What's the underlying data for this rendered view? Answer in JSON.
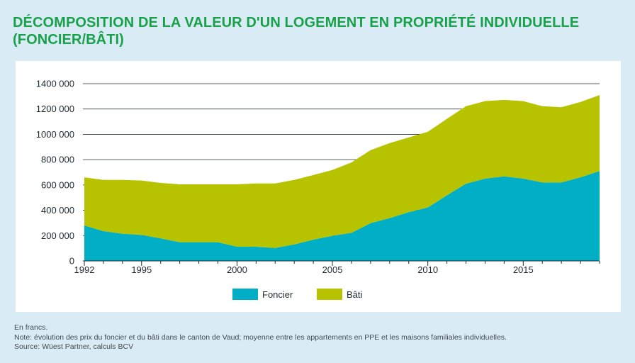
{
  "header": {
    "title_line1": "DÉCOMPOSITION DE LA VALEUR D'UN LOGEMENT EN PROPRIÉTÉ INDIVIDUELLE",
    "title_line2": "(FONCIER/BÂTI)"
  },
  "footer": {
    "unit": "En francs.",
    "note": "Note: évolution des prix du foncier et du bâti dans le canton de Vaud; moyenne entre les appartements en PPE et les maisons familiales individuelles.",
    "source": "Source: Wüest Partner, calculs BCV"
  },
  "colors": {
    "foncier": "#00afc6",
    "bati": "#b8c300",
    "title": "#1aa04a",
    "grid": "#1f2a30"
  },
  "chart_data": {
    "type": "area",
    "stacked": true,
    "x": [
      1992,
      1993,
      1994,
      1995,
      1996,
      1997,
      1998,
      1999,
      2000,
      2001,
      2002,
      2003,
      2004,
      2005,
      2006,
      2007,
      2008,
      2009,
      2010,
      2011,
      2012,
      2013,
      2014,
      2015,
      2016,
      2017,
      2018,
      2019
    ],
    "x_ticks": [
      1992,
      1995,
      2000,
      2005,
      2010,
      2015
    ],
    "x_tick_labels": [
      "1992",
      "1995",
      "2000",
      "2005",
      "2010",
      "2015"
    ],
    "ylim": [
      0,
      1400000
    ],
    "y_ticks": [
      0,
      200000,
      400000,
      600000,
      800000,
      1000000,
      1200000,
      1400000
    ],
    "y_tick_labels": [
      "0",
      "200 000",
      "400 000",
      "600 000",
      "800 000",
      "1000 000",
      "1200 000",
      "1400 000"
    ],
    "series": [
      {
        "name": "Foncier",
        "values": [
          280000,
          235000,
          215000,
          205000,
          178000,
          148000,
          148000,
          148000,
          112000,
          112000,
          102000,
          130000,
          168000,
          198000,
          222000,
          298000,
          338000,
          385000,
          422000,
          518000,
          610000,
          650000,
          668000,
          650000,
          620000,
          620000,
          660000,
          710000
        ]
      },
      {
        "name": "Bâti",
        "values": [
          380000,
          405000,
          425000,
          430000,
          438000,
          457000,
          457000,
          457000,
          493000,
          500000,
          510000,
          510000,
          510000,
          520000,
          556000,
          577000,
          592000,
          590000,
          598000,
          604000,
          612000,
          612000,
          604000,
          612000,
          602000,
          594000,
          595000,
          600000
        ]
      }
    ],
    "legend_position": "bottom-center",
    "grid": true
  }
}
